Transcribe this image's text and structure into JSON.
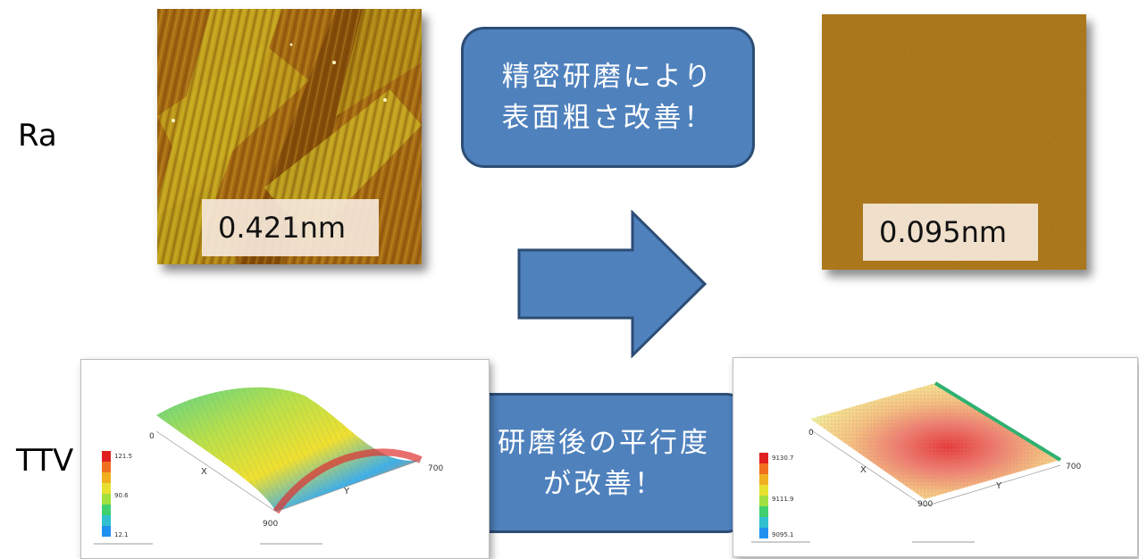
{
  "rows": {
    "ra_label": "Ra",
    "ttv_label": "TTV"
  },
  "afm_before": {
    "value": "0.421nm"
  },
  "afm_after": {
    "value": "0.095nm"
  },
  "callout_top": {
    "line1": "精密研磨により",
    "line2": "表面粗さ改善！"
  },
  "callout_bottom": {
    "line1": "研磨後の平行度",
    "line2": "が改善！"
  },
  "plot_before": {
    "axis_zero": "0",
    "axis_x": "X",
    "axis_y": "Y",
    "tick_900": "900",
    "tick_700": "700",
    "legend": [
      "121.5",
      "90.6",
      "12.1"
    ]
  },
  "plot_after": {
    "axis_zero": "0",
    "axis_x": "X",
    "axis_y": "Y",
    "tick_900": "900",
    "tick_700": "700",
    "legend": [
      "9130.7",
      "9111.9",
      "9095.1"
    ]
  },
  "colors": {
    "callout_fill": "#4f81bd",
    "callout_border": "#2c4d75",
    "arrow_fill": "#4f81bd"
  }
}
